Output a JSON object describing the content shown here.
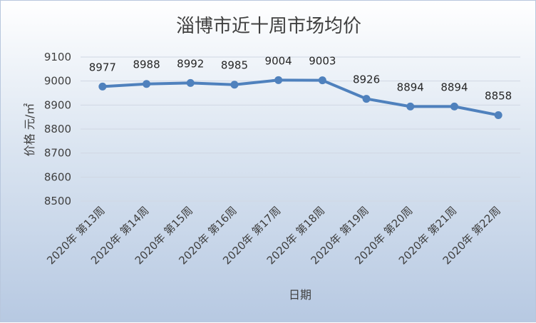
{
  "chart_data": {
    "type": "line",
    "title": "淄博市近十周市场均价",
    "xlabel": "日期",
    "ylabel": "价格 元/㎡",
    "categories": [
      "2020年 第13周",
      "2020年 第14周",
      "2020年 第15周",
      "2020年 第16周",
      "2020年 第17周",
      "2020年 第18周",
      "2020年 第19周",
      "2020年 第20周",
      "2020年 第21周",
      "2020年 第22周"
    ],
    "series": [
      {
        "values": [
          8977,
          8988,
          8992,
          8985,
          9004,
          9003,
          8926,
          8894,
          8894,
          8858
        ]
      }
    ],
    "ylim": [
      8500,
      9100
    ],
    "yticks": [
      8500,
      8600,
      8700,
      8800,
      8900,
      9000,
      9100
    ],
    "grid": true,
    "line_color": "#4f81bd",
    "show_data_labels": true
  }
}
